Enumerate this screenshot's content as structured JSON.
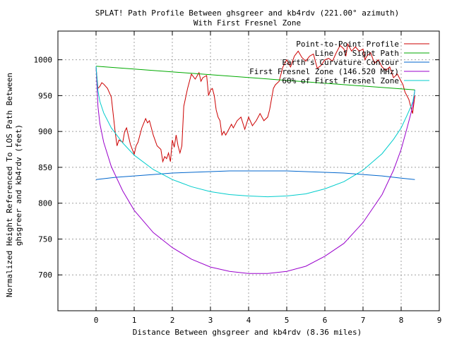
{
  "chart_data": {
    "type": "line",
    "title": "SPLAT! Path Profile Between ghsgreer and kb4rdv (221.00° azimuth)",
    "subtitle": "With First Fresnel Zone",
    "xlabel": "Distance Between ghsgreer and kb4rdv (8.36 miles)",
    "ylabel_line1": "Normalized Height Referenced To LOS Path Between",
    "ylabel_line2": "ghsgreer and kb4rdv (feet)",
    "xlim": [
      -1,
      9
    ],
    "ylim": [
      650,
      1040
    ],
    "xticks": [
      0,
      1,
      2,
      3,
      4,
      5,
      6,
      7,
      8,
      9
    ],
    "yticks": [
      700,
      750,
      800,
      850,
      900,
      950,
      1000
    ],
    "grid": true,
    "legend_position": "top-right",
    "series": [
      {
        "name": "Point-to-Point Profile",
        "color": "#cc0000",
        "x": [
          0,
          0.05,
          0.1,
          0.15,
          0.2,
          0.3,
          0.4,
          0.5,
          0.55,
          0.6,
          0.7,
          0.75,
          0.8,
          0.9,
          1.0,
          1.05,
          1.1,
          1.2,
          1.3,
          1.35,
          1.4,
          1.5,
          1.6,
          1.7,
          1.75,
          1.8,
          1.85,
          1.9,
          1.95,
          2.0,
          2.05,
          2.1,
          2.15,
          2.2,
          2.25,
          2.3,
          2.4,
          2.5,
          2.6,
          2.7,
          2.75,
          2.8,
          2.9,
          2.95,
          3.0,
          3.05,
          3.1,
          3.15,
          3.2,
          3.25,
          3.3,
          3.35,
          3.4,
          3.5,
          3.55,
          3.6,
          3.7,
          3.8,
          3.9,
          4.0,
          4.1,
          4.2,
          4.3,
          4.4,
          4.5,
          4.55,
          4.6,
          4.65,
          4.7,
          4.8,
          4.9,
          5.0,
          5.1,
          5.2,
          5.3,
          5.4,
          5.5,
          5.6,
          5.7,
          5.8,
          5.9,
          6.0,
          6.1,
          6.2,
          6.3,
          6.4,
          6.5,
          6.55,
          6.6,
          6.7,
          6.8,
          6.9,
          7.0,
          7.05,
          7.1,
          7.2,
          7.3,
          7.4,
          7.5,
          7.6,
          7.7,
          7.8,
          7.9,
          8.0,
          8.05,
          8.1,
          8.2,
          8.3,
          8.36
        ],
        "y": [
          990,
          960,
          963,
          968,
          966,
          960,
          948,
          900,
          880,
          888,
          885,
          900,
          905,
          882,
          868,
          880,
          885,
          905,
          918,
          912,
          915,
          895,
          880,
          875,
          858,
          865,
          862,
          870,
          858,
          888,
          878,
          895,
          880,
          870,
          880,
          935,
          960,
          980,
          973,
          982,
          970,
          975,
          978,
          950,
          958,
          960,
          950,
          930,
          920,
          915,
          895,
          900,
          895,
          905,
          910,
          905,
          915,
          920,
          903,
          920,
          908,
          915,
          925,
          915,
          920,
          930,
          945,
          960,
          965,
          970,
          990,
          1000,
          990,
          1005,
          1012,
          1003,
          998,
          1005,
          1008,
          988,
          992,
          1000,
          1002,
          998,
          1010,
          1020,
          1015,
          1005,
          1022,
          1012,
          1018,
          1012,
          1015,
          1000,
          1005,
          1010,
          995,
          1000,
          990,
          985,
          990,
          975,
          980,
          970,
          965,
          955,
          945,
          925,
          950
        ]
      },
      {
        "name": "Line of Sight Path",
        "color": "#00aa00",
        "x": [
          0,
          8.36
        ],
        "y": [
          991,
          958
        ]
      },
      {
        "name": "Earth's Curvature Contour",
        "color": "#0066cc",
        "x": [
          0,
          0.5,
          1,
          1.5,
          2,
          2.5,
          3,
          3.5,
          4,
          4.5,
          5,
          5.5,
          6,
          6.5,
          7,
          7.5,
          8,
          8.36
        ],
        "y": [
          833,
          836,
          838,
          840,
          842,
          843,
          844,
          845,
          845,
          845,
          845,
          844,
          843,
          842,
          840,
          838,
          835,
          833
        ]
      },
      {
        "name": "First Fresnel Zone (146.520 MHz)",
        "color": "#9900cc",
        "x": [
          0,
          0.05,
          0.1,
          0.2,
          0.4,
          0.7,
          1.0,
          1.5,
          2.0,
          2.5,
          3.0,
          3.5,
          4.0,
          4.5,
          5.0,
          5.5,
          6.0,
          6.5,
          7.0,
          7.5,
          7.8,
          8.0,
          8.15,
          8.25,
          8.31,
          8.36
        ],
        "y": [
          991,
          935,
          911,
          885,
          851,
          817,
          790,
          759,
          738,
          722,
          711,
          705,
          702,
          702,
          705,
          712,
          726,
          744,
          773,
          812,
          846,
          875,
          904,
          924,
          938,
          958
        ]
      },
      {
        "name": "60% of First Fresnel Zone",
        "color": "#00cccc",
        "x": [
          0,
          0.05,
          0.1,
          0.2,
          0.4,
          0.7,
          1.0,
          1.5,
          2.0,
          2.5,
          3.0,
          3.5,
          4.0,
          4.5,
          5.0,
          5.5,
          6.0,
          6.5,
          7.0,
          7.5,
          7.8,
          8.0,
          8.15,
          8.25,
          8.31,
          8.36
        ],
        "y": [
          991,
          957,
          942,
          926,
          905,
          884,
          867,
          847,
          833,
          823,
          816,
          812,
          810,
          809,
          810,
          813,
          820,
          830,
          846,
          869,
          889,
          905,
          922,
          934,
          942,
          958
        ]
      }
    ]
  }
}
